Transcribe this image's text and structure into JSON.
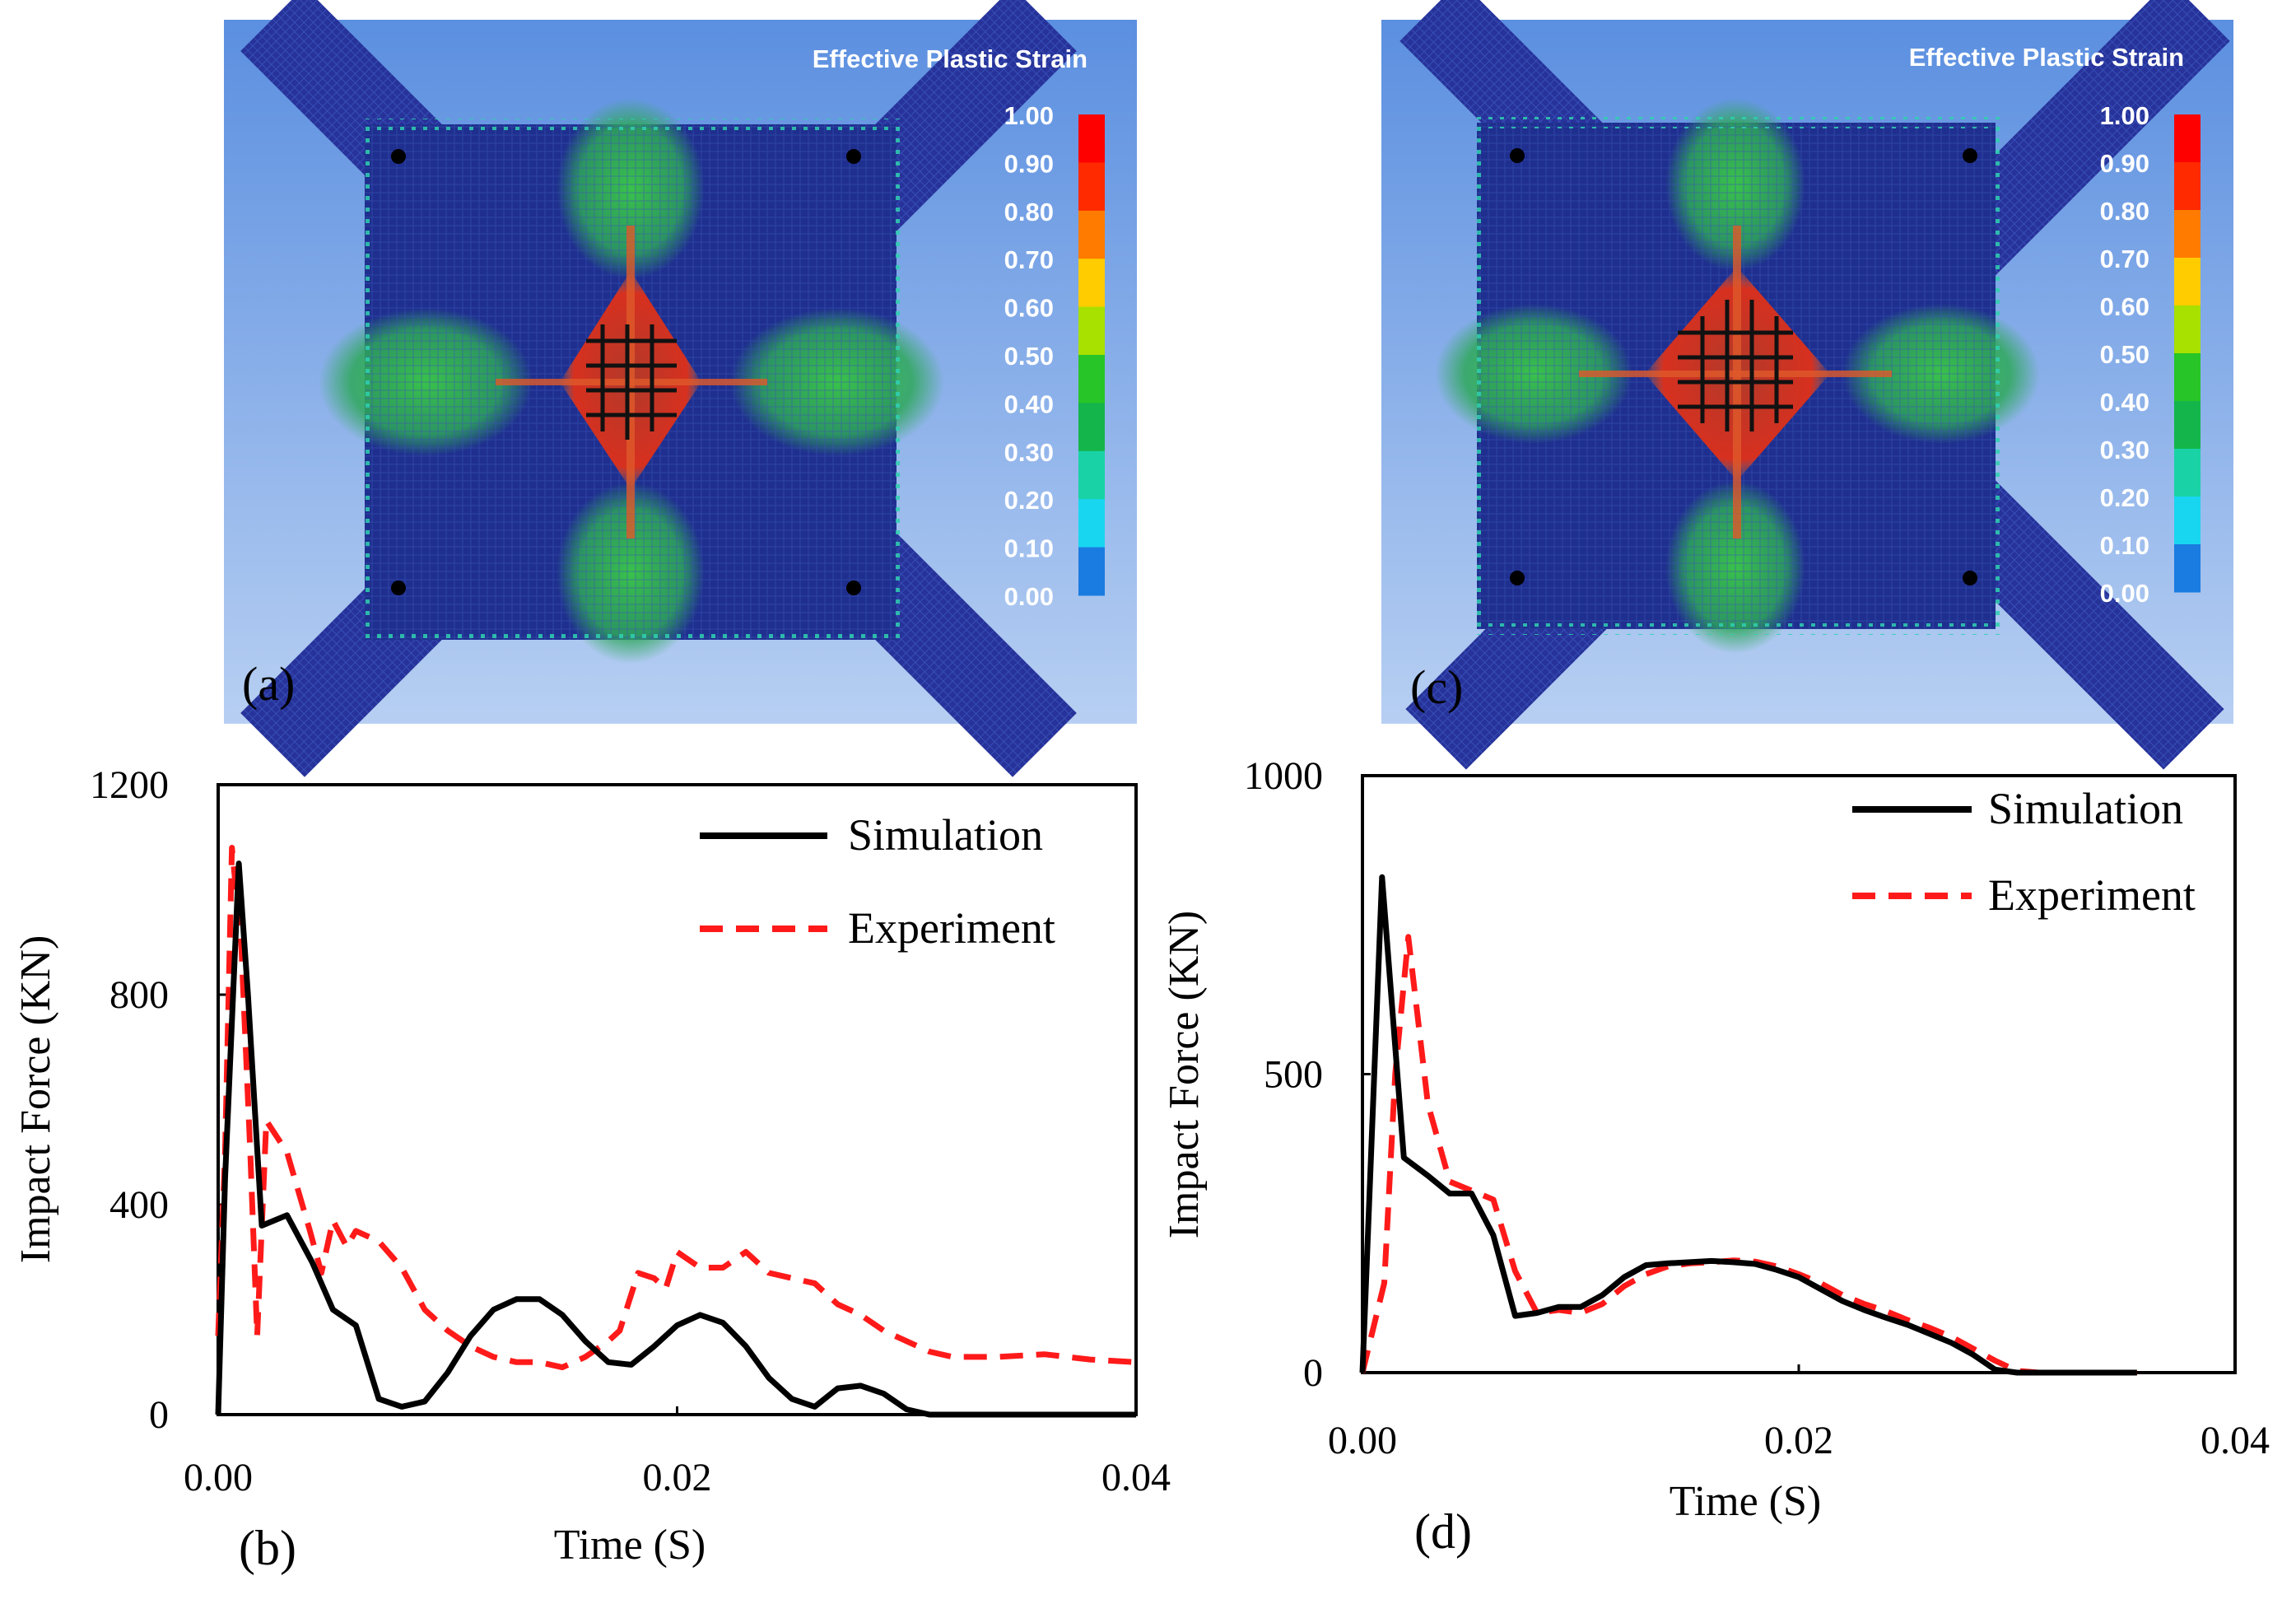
{
  "panels": {
    "a": {
      "label": "(a)",
      "title": "Effective Plastic Strain",
      "colorbar_ticks": [
        "1.00",
        "0.90",
        "0.80",
        "0.70",
        "0.60",
        "0.50",
        "0.40",
        "0.30",
        "0.20",
        "0.10",
        "0.00"
      ]
    },
    "c": {
      "label": "(c)",
      "title": "Effective Plastic Strain",
      "colorbar_ticks": [
        "1.00",
        "0.90",
        "0.80",
        "0.70",
        "0.60",
        "0.50",
        "0.40",
        "0.30",
        "0.20",
        "0.10",
        "0.00"
      ]
    },
    "b": {
      "label": "(b)"
    },
    "d": {
      "label": "(d)"
    }
  },
  "colors": {
    "sim_background_top": "#5b8fe0",
    "sim_background_bottom": "#b7cff2",
    "plate_blue": "#1f2f8f",
    "strain_green": "#3fbf4a",
    "strain_red": "#d7301f",
    "simulation_line": "#000000",
    "experiment_line": "#ff1a1a",
    "colorbar": [
      "#ff0000",
      "#ff2a00",
      "#ff7b00",
      "#ffcc00",
      "#a8e000",
      "#27c527",
      "#14b54a",
      "#19d3a6",
      "#19d6f0",
      "#1a7be0",
      "#1010e0"
    ]
  },
  "chart_data": [
    {
      "id": "b",
      "type": "line",
      "xlabel": "Time (S)",
      "ylabel": "Impact Force (KN)",
      "xlim": [
        0,
        0.04
      ],
      "ylim": [
        0,
        1200
      ],
      "xticks": [
        0,
        0.02,
        0.04
      ],
      "xtick_labels": [
        "0.00",
        "0.02",
        "0.04"
      ],
      "yticks": [
        0,
        400,
        800,
        1200
      ],
      "ytick_labels": [
        "0",
        "400",
        "800",
        "1200"
      ],
      "legend": "top-right",
      "series": [
        {
          "name": "Simulation",
          "style": "solid",
          "points": [
            [
              0.0,
              0
            ],
            [
              0.0003,
              450
            ],
            [
              0.0009,
              1050
            ],
            [
              0.0013,
              800
            ],
            [
              0.0019,
              360
            ],
            [
              0.003,
              380
            ],
            [
              0.0041,
              290
            ],
            [
              0.005,
              200
            ],
            [
              0.006,
              170
            ],
            [
              0.007,
              30
            ],
            [
              0.008,
              15
            ],
            [
              0.009,
              25
            ],
            [
              0.01,
              80
            ],
            [
              0.011,
              150
            ],
            [
              0.012,
              200
            ],
            [
              0.013,
              220
            ],
            [
              0.014,
              220
            ],
            [
              0.015,
              190
            ],
            [
              0.016,
              140
            ],
            [
              0.017,
              100
            ],
            [
              0.018,
              95
            ],
            [
              0.019,
              130
            ],
            [
              0.02,
              170
            ],
            [
              0.021,
              190
            ],
            [
              0.022,
              175
            ],
            [
              0.023,
              130
            ],
            [
              0.024,
              70
            ],
            [
              0.025,
              30
            ],
            [
              0.026,
              15
            ],
            [
              0.027,
              50
            ],
            [
              0.028,
              55
            ],
            [
              0.029,
              40
            ],
            [
              0.03,
              10
            ],
            [
              0.031,
              0
            ],
            [
              0.032,
              0
            ],
            [
              0.034,
              0
            ],
            [
              0.036,
              0
            ],
            [
              0.038,
              0
            ],
            [
              0.04,
              0
            ]
          ]
        },
        {
          "name": "Experiment",
          "style": "dashed",
          "points": [
            [
              0.0,
              150
            ],
            [
              0.0003,
              500
            ],
            [
              0.0006,
              1080
            ],
            [
              0.001,
              900
            ],
            [
              0.0014,
              500
            ],
            [
              0.0017,
              150
            ],
            [
              0.0021,
              560
            ],
            [
              0.003,
              500
            ],
            [
              0.004,
              350
            ],
            [
              0.0045,
              270
            ],
            [
              0.005,
              370
            ],
            [
              0.0056,
              320
            ],
            [
              0.006,
              350
            ],
            [
              0.007,
              330
            ],
            [
              0.008,
              280
            ],
            [
              0.009,
              200
            ],
            [
              0.01,
              160
            ],
            [
              0.011,
              130
            ],
            [
              0.012,
              110
            ],
            [
              0.013,
              100
            ],
            [
              0.014,
              100
            ],
            [
              0.015,
              90
            ],
            [
              0.016,
              110
            ],
            [
              0.017,
              140
            ],
            [
              0.0175,
              160
            ],
            [
              0.0183,
              270
            ],
            [
              0.019,
              260
            ],
            [
              0.0195,
              240
            ],
            [
              0.02,
              310
            ],
            [
              0.021,
              280
            ],
            [
              0.022,
              280
            ],
            [
              0.023,
              310
            ],
            [
              0.024,
              270
            ],
            [
              0.025,
              260
            ],
            [
              0.026,
              250
            ],
            [
              0.027,
              210
            ],
            [
              0.028,
              190
            ],
            [
              0.029,
              160
            ],
            [
              0.03,
              140
            ],
            [
              0.031,
              120
            ],
            [
              0.032,
              110
            ],
            [
              0.034,
              110
            ],
            [
              0.036,
              115
            ],
            [
              0.038,
              105
            ],
            [
              0.04,
              100
            ]
          ]
        }
      ]
    },
    {
      "id": "d",
      "type": "line",
      "xlabel": "Time (S)",
      "ylabel": "Impact Force (KN)",
      "xlim": [
        0,
        0.04
      ],
      "ylim": [
        0,
        1000
      ],
      "xticks": [
        0,
        0.02,
        0.04
      ],
      "xtick_labels": [
        "0.00",
        "0.02",
        "0.04"
      ],
      "yticks": [
        0,
        500,
        1000
      ],
      "ytick_labels": [
        "0",
        "500",
        "1000"
      ],
      "legend": "top-right",
      "series": [
        {
          "name": "Simulation",
          "style": "solid",
          "points": [
            [
              0.0,
              0
            ],
            [
              0.0009,
              830
            ],
            [
              0.0019,
              360
            ],
            [
              0.003,
              330
            ],
            [
              0.004,
              300
            ],
            [
              0.005,
              300
            ],
            [
              0.006,
              230
            ],
            [
              0.007,
              95
            ],
            [
              0.008,
              100
            ],
            [
              0.009,
              110
            ],
            [
              0.01,
              110
            ],
            [
              0.011,
              130
            ],
            [
              0.012,
              160
            ],
            [
              0.013,
              180
            ],
            [
              0.014,
              183
            ],
            [
              0.015,
              185
            ],
            [
              0.016,
              187
            ],
            [
              0.017,
              185
            ],
            [
              0.018,
              182
            ],
            [
              0.019,
              172
            ],
            [
              0.02,
              160
            ],
            [
              0.021,
              140
            ],
            [
              0.022,
              120
            ],
            [
              0.023,
              105
            ],
            [
              0.024,
              92
            ],
            [
              0.025,
              80
            ],
            [
              0.026,
              65
            ],
            [
              0.027,
              50
            ],
            [
              0.028,
              30
            ],
            [
              0.029,
              5
            ],
            [
              0.03,
              0
            ],
            [
              0.032,
              0
            ],
            [
              0.034,
              0
            ],
            [
              0.0355,
              0
            ]
          ]
        },
        {
          "name": "Experiment",
          "style": "dashed",
          "points": [
            [
              0.0,
              0
            ],
            [
              0.001,
              150
            ],
            [
              0.0015,
              500
            ],
            [
              0.0021,
              730
            ],
            [
              0.003,
              450
            ],
            [
              0.004,
              320
            ],
            [
              0.005,
              305
            ],
            [
              0.006,
              290
            ],
            [
              0.007,
              170
            ],
            [
              0.008,
              100
            ],
            [
              0.009,
              105
            ],
            [
              0.01,
              100
            ],
            [
              0.011,
              115
            ],
            [
              0.012,
              145
            ],
            [
              0.013,
              165
            ],
            [
              0.014,
              178
            ],
            [
              0.015,
              183
            ],
            [
              0.016,
              185
            ],
            [
              0.017,
              188
            ],
            [
              0.018,
              186
            ],
            [
              0.019,
              178
            ],
            [
              0.02,
              165
            ],
            [
              0.021,
              150
            ],
            [
              0.022,
              130
            ],
            [
              0.023,
              115
            ],
            [
              0.024,
              103
            ],
            [
              0.025,
              88
            ],
            [
              0.026,
              75
            ],
            [
              0.027,
              60
            ],
            [
              0.028,
              40
            ],
            [
              0.029,
              20
            ],
            [
              0.03,
              3
            ],
            [
              0.031,
              0
            ],
            [
              0.033,
              0
            ],
            [
              0.0355,
              0
            ]
          ]
        }
      ]
    }
  ]
}
